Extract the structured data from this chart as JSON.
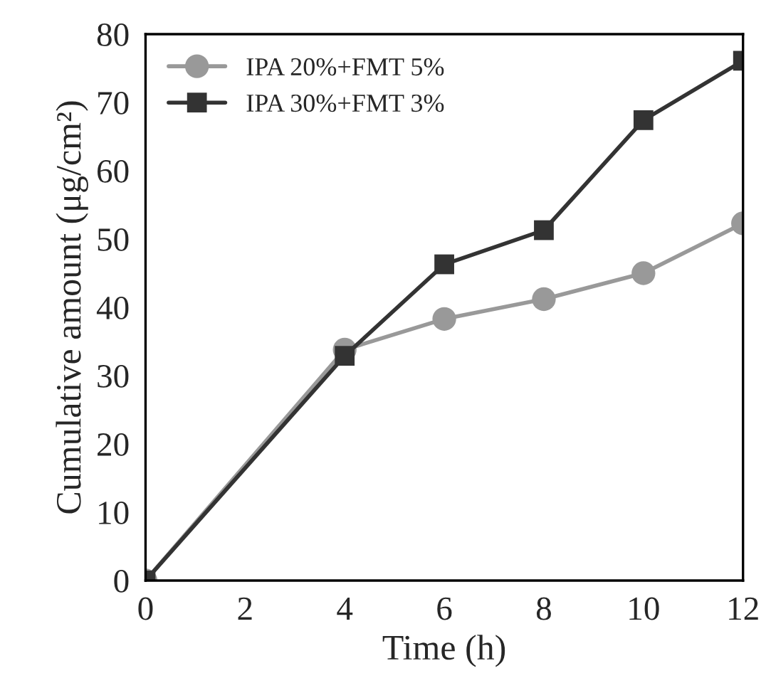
{
  "chart_data": {
    "type": "line",
    "xlabel": "Time (h)",
    "ylabel": "Cumulative amount (μg/cm²)",
    "x": [
      0,
      4,
      6,
      8,
      10,
      12
    ],
    "series": [
      {
        "name": "IPA 20%+FMT 5%",
        "color": "#999999",
        "marker": "circle",
        "values": [
          0,
          33.8,
          38.3,
          41.2,
          45.0,
          52.3
        ]
      },
      {
        "name": "IPA 30%+FMT 3%",
        "color": "#333333",
        "marker": "square",
        "values": [
          0,
          32.9,
          46.3,
          51.3,
          67.4,
          76.1
        ]
      }
    ],
    "xlim": [
      0,
      12
    ],
    "ylim": [
      0,
      80
    ],
    "xticks": [
      0,
      2,
      4,
      6,
      8,
      10,
      12
    ],
    "yticks": [
      0,
      10,
      20,
      30,
      40,
      50,
      60,
      70,
      80
    ],
    "grid": false,
    "legend": "top left"
  }
}
